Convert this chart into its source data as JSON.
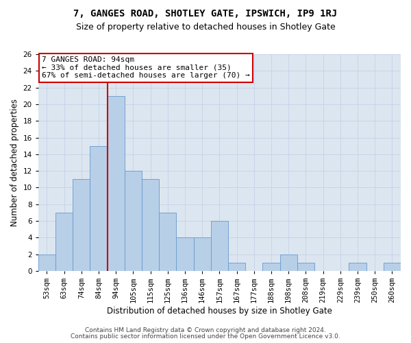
{
  "title1": "7, GANGES ROAD, SHOTLEY GATE, IPSWICH, IP9 1RJ",
  "title2": "Size of property relative to detached houses in Shotley Gate",
  "xlabel": "Distribution of detached houses by size in Shotley Gate",
  "ylabel": "Number of detached properties",
  "bins": [
    "53sqm",
    "63sqm",
    "74sqm",
    "84sqm",
    "94sqm",
    "105sqm",
    "115sqm",
    "125sqm",
    "136sqm",
    "146sqm",
    "157sqm",
    "167sqm",
    "177sqm",
    "188sqm",
    "198sqm",
    "208sqm",
    "219sqm",
    "229sqm",
    "239sqm",
    "250sqm",
    "260sqm"
  ],
  "values": [
    2,
    7,
    11,
    15,
    21,
    12,
    11,
    7,
    4,
    4,
    6,
    1,
    0,
    1,
    2,
    1,
    0,
    0,
    1,
    0,
    1
  ],
  "bar_color": "#b8cfe8",
  "bar_edge_color": "#6699cc",
  "vline_bar_index": 4,
  "annotation_line1": "7 GANGES ROAD: 94sqm",
  "annotation_line2": "← 33% of detached houses are smaller (35)",
  "annotation_line3": "67% of semi-detached houses are larger (70) →",
  "annotation_box_color": "white",
  "annotation_box_edge_color": "#cc0000",
  "vline_color": "#cc0000",
  "ylim": [
    0,
    26
  ],
  "yticks": [
    0,
    2,
    4,
    6,
    8,
    10,
    12,
    14,
    16,
    18,
    20,
    22,
    24,
    26
  ],
  "grid_color": "#c8d4e8",
  "background_color": "#dce6f0",
  "footer1": "Contains HM Land Registry data © Crown copyright and database right 2024.",
  "footer2": "Contains public sector information licensed under the Open Government Licence v3.0.",
  "title1_fontsize": 10,
  "title2_fontsize": 9,
  "axis_label_fontsize": 8.5,
  "tick_fontsize": 7.5,
  "annotation_fontsize": 8,
  "footer_fontsize": 6.5
}
